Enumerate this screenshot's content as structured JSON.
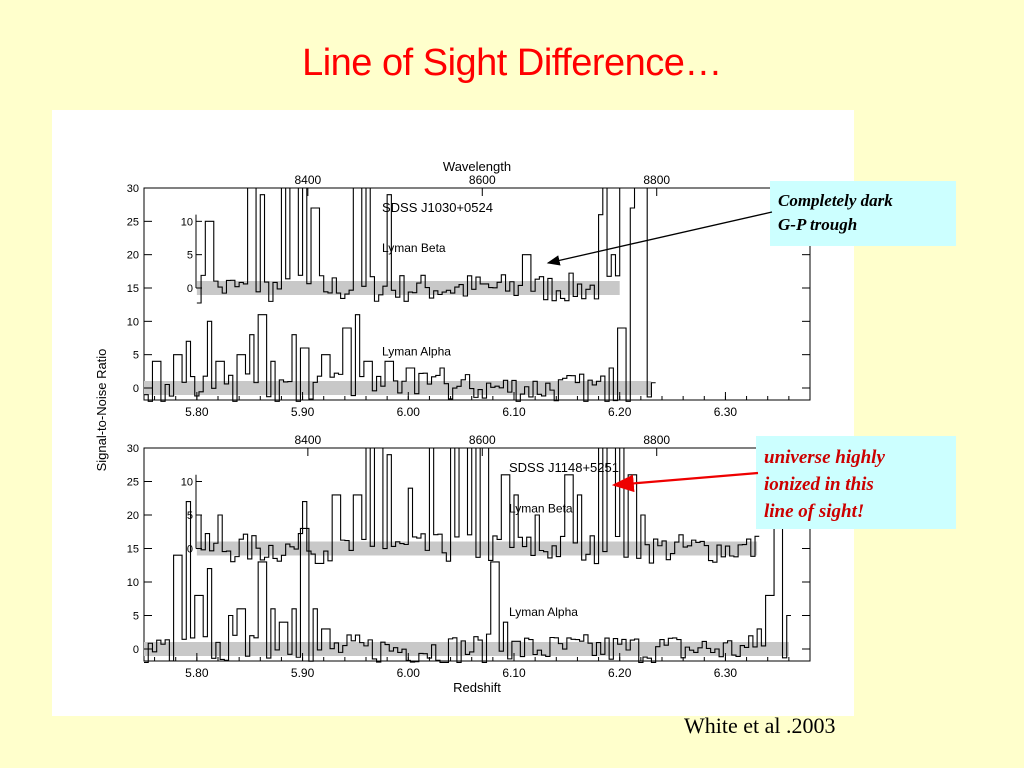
{
  "slide": {
    "title": "Line of Sight Difference…",
    "citation": "White et al .2003",
    "callout_dark": [
      "Completely dark",
      "G-P trough"
    ],
    "callout_ionized": [
      "universe highly",
      "ionized in this",
      "line of sight!"
    ]
  },
  "colors": {
    "title": "#ff0000",
    "background": "#ffffcc",
    "callout_bg": "#ccffff",
    "callout_red": "#cc0000",
    "arrow_red": "#ee0000",
    "band": "#c8c8c8"
  },
  "chart_data": [
    {
      "type": "line",
      "top_axis_label": "Wavelength",
      "top_ticks": [
        "8400",
        "8600",
        "8800"
      ],
      "ylabel": "Signal-to-Noise Ratio",
      "xlabel": "",
      "x_ticks": [
        "5.80",
        "5.90",
        "6.00",
        "6.10",
        "6.20",
        "6.30"
      ],
      "y_ticks": [
        "0",
        "5",
        "10",
        "15",
        "20",
        "25",
        "30"
      ],
      "inner_y_ticks": [
        "0",
        "5",
        "10"
      ],
      "object": "SDSS J1030+0524",
      "series": [
        {
          "name": "Lyman Beta",
          "x_range": [
            5.8,
            6.2
          ],
          "baseline": 15,
          "offset_ticks": [
            0,
            5,
            10
          ],
          "spikes": [
            [
              5.81,
              10
            ],
            [
              5.85,
              26
            ],
            [
              5.86,
              14
            ],
            [
              5.88,
              28
            ],
            [
              5.89,
              23
            ],
            [
              5.9,
              30
            ],
            [
              5.91,
              12
            ],
            [
              5.95,
              24
            ],
            [
              5.96,
              30
            ],
            [
              5.98,
              14
            ],
            [
              6.11,
              5
            ],
            [
              6.18,
              11
            ],
            [
              6.185,
              27
            ],
            [
              6.193,
              5
            ],
            [
              6.2,
              18
            ]
          ]
        },
        {
          "name": "Lyman Alpha",
          "x_range": [
            5.75,
            6.23
          ],
          "baseline": 0,
          "spikes": [
            [
              5.76,
              4
            ],
            [
              5.78,
              5
            ],
            [
              5.79,
              7
            ],
            [
              5.81,
              10
            ],
            [
              5.82,
              4
            ],
            [
              5.84,
              5
            ],
            [
              5.85,
              8
            ],
            [
              5.86,
              11
            ],
            [
              5.87,
              4
            ],
            [
              5.89,
              8
            ],
            [
              5.9,
              6
            ],
            [
              5.92,
              5
            ],
            [
              5.94,
              9
            ],
            [
              5.95,
              11
            ],
            [
              5.96,
              4
            ],
            [
              5.98,
              4
            ],
            [
              6.0,
              3
            ],
            [
              6.03,
              3
            ],
            [
              6.19,
              3
            ],
            [
              6.2,
              9
            ],
            [
              6.21,
              27
            ],
            [
              6.215,
              30
            ],
            [
              6.22,
              30
            ]
          ]
        }
      ],
      "annotation": "Completely dark G-P trough"
    },
    {
      "type": "line",
      "top_ticks": [
        "8400",
        "8600",
        "8800"
      ],
      "ylabel": "Signal-to-Noise Ratio",
      "xlabel": "Redshift",
      "x_ticks": [
        "5.80",
        "5.90",
        "6.00",
        "6.10",
        "6.20",
        "6.30"
      ],
      "y_ticks": [
        "0",
        "5",
        "10",
        "15",
        "20",
        "25",
        "30"
      ],
      "inner_y_ticks": [
        "0",
        "5",
        "10"
      ],
      "object": "SDSS J1148+5251",
      "series": [
        {
          "name": "Lyman Beta",
          "x_range": [
            5.8,
            6.33
          ],
          "baseline": 15,
          "offset_ticks": [
            0,
            5,
            10
          ],
          "spikes": [
            [
              5.8,
              5
            ],
            [
              5.82,
              5
            ],
            [
              5.9,
              7
            ],
            [
              5.93,
              8
            ],
            [
              5.95,
              8
            ],
            [
              5.96,
              30
            ],
            [
              5.97,
              25
            ],
            [
              5.98,
              14
            ],
            [
              6.0,
              9
            ],
            [
              6.02,
              30
            ],
            [
              6.04,
              25
            ],
            [
              6.05,
              30
            ],
            [
              6.06,
              30
            ],
            [
              6.07,
              30
            ],
            [
              6.09,
              11
            ],
            [
              6.1,
              8
            ],
            [
              6.12,
              5
            ],
            [
              6.15,
              11
            ],
            [
              6.16,
              8
            ],
            [
              6.18,
              27
            ],
            [
              6.19,
              30
            ],
            [
              6.2,
              28
            ],
            [
              6.21,
              11
            ],
            [
              6.22,
              5
            ]
          ]
        },
        {
          "name": "Lyman Alpha",
          "x_range": [
            5.75,
            6.36
          ],
          "baseline": 0,
          "spikes": [
            [
              5.78,
              14
            ],
            [
              5.79,
              22
            ],
            [
              5.8,
              8
            ],
            [
              5.81,
              12
            ],
            [
              5.83,
              5
            ],
            [
              5.84,
              6
            ],
            [
              5.86,
              13
            ],
            [
              5.87,
              6
            ],
            [
              5.88,
              4
            ],
            [
              5.89,
              6
            ],
            [
              5.9,
              18
            ],
            [
              5.91,
              6
            ],
            [
              5.92,
              3
            ],
            [
              6.08,
              13
            ],
            [
              6.09,
              4
            ],
            [
              6.33,
              3
            ],
            [
              6.34,
              8
            ],
            [
              6.345,
              30
            ],
            [
              6.35,
              30
            ],
            [
              6.36,
              5
            ]
          ]
        }
      ],
      "annotation": "universe highly ionized in this line of sight!"
    }
  ]
}
